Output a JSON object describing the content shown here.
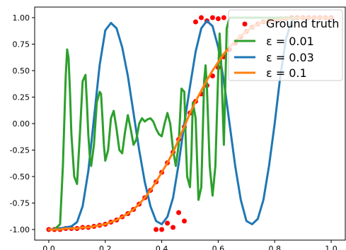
{
  "chart_data": {
    "type": "line",
    "xlim": [
      -0.05,
      1.05
    ],
    "ylim": [
      -1.1,
      1.1
    ],
    "xticks": [
      "0.0",
      "0.2",
      "0.4",
      "0.6",
      "0.8",
      "1.0"
    ],
    "xtick_values": [
      0.0,
      0.2,
      0.4,
      0.6,
      0.8,
      1.0
    ],
    "yticks": [
      "1.00",
      "0.75",
      "0.50",
      "0.25",
      "0.00",
      "-0.25",
      "-0.50",
      "-0.75",
      "-1.00"
    ],
    "ytick_values": [
      1.0,
      0.75,
      0.5,
      0.25,
      0.0,
      -0.25,
      -0.5,
      -0.75,
      -1.0
    ],
    "grid": false,
    "legend_position": "top-right",
    "legend": {
      "ground_truth": "Ground truth",
      "eps001": "ε = 0.01",
      "eps003": "ε = 0.03",
      "eps01": "ε = 0.1"
    },
    "series": [
      {
        "name": "Ground truth",
        "style": "points",
        "color": "#ff0000",
        "x": [
          0.0,
          0.02,
          0.04,
          0.06,
          0.08,
          0.1,
          0.12,
          0.14,
          0.16,
          0.18,
          0.2,
          0.22,
          0.24,
          0.26,
          0.28,
          0.3,
          0.32,
          0.34,
          0.36,
          0.38,
          0.4,
          0.42,
          0.44,
          0.46,
          0.48,
          0.5,
          0.52,
          0.54,
          0.56,
          0.58,
          0.6,
          0.62,
          0.64,
          0.66,
          0.68,
          0.7,
          0.72,
          0.74,
          0.76,
          0.78,
          0.8,
          0.82,
          0.84,
          0.86,
          0.88,
          0.9,
          0.92,
          0.94,
          0.96,
          0.98,
          1.0,
          0.38,
          0.4,
          0.42,
          0.44,
          0.46,
          0.48,
          0.52,
          0.54,
          0.56,
          0.58,
          0.6,
          0.62
        ],
        "y": [
          -1.0,
          -1.0,
          -1.0,
          -0.99,
          -0.99,
          -0.99,
          -0.98,
          -0.98,
          -0.97,
          -0.96,
          -0.95,
          -0.93,
          -0.91,
          -0.88,
          -0.85,
          -0.81,
          -0.76,
          -0.7,
          -0.63,
          -0.55,
          -0.46,
          -0.37,
          -0.27,
          -0.15,
          -0.03,
          0.1,
          0.21,
          0.28,
          0.36,
          0.45,
          0.53,
          0.63,
          0.7,
          0.76,
          0.82,
          0.87,
          0.91,
          0.94,
          0.96,
          0.97,
          0.98,
          0.99,
          0.99,
          1.0,
          1.0,
          1.0,
          1.0,
          1.0,
          1.0,
          1.0,
          1.0,
          -1.0,
          -1.0,
          -0.94,
          -0.98,
          -0.84,
          -0.92,
          0.96,
          1.0,
          0.97,
          1.0,
          0.99,
          1.0
        ]
      },
      {
        "name": "ε = 0.01",
        "style": "line",
        "color": "#2ca02c",
        "x": [
          0.0,
          0.02,
          0.04,
          0.05,
          0.06,
          0.065,
          0.07,
          0.075,
          0.08,
          0.09,
          0.1,
          0.11,
          0.12,
          0.13,
          0.135,
          0.14,
          0.145,
          0.15,
          0.16,
          0.17,
          0.18,
          0.185,
          0.19,
          0.195,
          0.2,
          0.21,
          0.22,
          0.23,
          0.24,
          0.25,
          0.26,
          0.27,
          0.28,
          0.29,
          0.3,
          0.31,
          0.32,
          0.33,
          0.34,
          0.35,
          0.36,
          0.37,
          0.38,
          0.39,
          0.4,
          0.41,
          0.42,
          0.43,
          0.44,
          0.45,
          0.46,
          0.47,
          0.48,
          0.485,
          0.49,
          0.5,
          0.505,
          0.51,
          0.52,
          0.53,
          0.54,
          0.55,
          0.555,
          0.56,
          0.57,
          0.58,
          0.59,
          0.6,
          0.605,
          0.61,
          0.62,
          0.63,
          0.64,
          0.66,
          0.7,
          0.8,
          0.9,
          1.0
        ],
        "y": [
          -1.0,
          -1.0,
          -0.95,
          -0.4,
          0.45,
          0.7,
          0.62,
          0.3,
          -0.1,
          -0.5,
          -0.57,
          -0.1,
          0.4,
          0.46,
          0.2,
          -0.1,
          -0.3,
          -0.4,
          -0.2,
          0.2,
          0.3,
          0.28,
          0.05,
          -0.2,
          -0.35,
          -0.25,
          0.05,
          0.12,
          -0.05,
          -0.25,
          -0.28,
          -0.08,
          0.08,
          -0.05,
          -0.2,
          -0.15,
          0.0,
          0.05,
          0.02,
          0.04,
          0.05,
          0.02,
          -0.05,
          -0.1,
          -0.12,
          0.0,
          0.1,
          0.0,
          -0.25,
          -0.4,
          -0.2,
          0.33,
          0.3,
          -0.15,
          -0.5,
          -0.6,
          -0.3,
          0.2,
          0.05,
          -0.72,
          -0.6,
          0.4,
          0.55,
          0.35,
          -0.4,
          -0.68,
          -0.4,
          0.48,
          0.85,
          0.6,
          -0.2,
          0.9,
          1.0,
          1.0,
          1.0,
          1.0,
          1.0,
          1.0
        ]
      },
      {
        "name": "ε = 0.03",
        "style": "line",
        "color": "#1f77b4",
        "x": [
          0.0,
          0.04,
          0.08,
          0.1,
          0.12,
          0.14,
          0.16,
          0.18,
          0.2,
          0.22,
          0.24,
          0.26,
          0.28,
          0.3,
          0.32,
          0.34,
          0.36,
          0.38,
          0.4,
          0.42,
          0.44,
          0.46,
          0.48,
          0.5,
          0.52,
          0.54,
          0.56,
          0.58,
          0.6,
          0.62,
          0.64,
          0.66,
          0.68,
          0.7,
          0.72,
          0.74,
          0.76,
          0.78,
          0.8,
          0.82,
          0.84,
          0.86,
          0.88,
          0.9,
          0.92,
          0.94,
          0.96,
          0.98,
          1.0
        ],
        "y": [
          -1.0,
          -0.99,
          -0.97,
          -0.93,
          -0.78,
          -0.45,
          0.05,
          0.55,
          0.88,
          0.95,
          0.9,
          0.72,
          0.45,
          0.1,
          -0.25,
          -0.55,
          -0.78,
          -0.92,
          -0.95,
          -0.88,
          -0.7,
          -0.38,
          0.0,
          0.35,
          0.68,
          0.9,
          0.97,
          0.92,
          0.72,
          0.4,
          0.0,
          -0.4,
          -0.72,
          -0.92,
          -0.95,
          -0.9,
          -0.72,
          -0.4,
          0.0,
          0.45,
          0.8,
          0.97,
          1.0,
          1.0,
          1.0,
          1.0,
          1.0,
          1.0,
          1.0
        ]
      },
      {
        "name": "ε = 0.1",
        "style": "line",
        "color": "#ff7f0e",
        "x": [
          0.0,
          0.02,
          0.04,
          0.06,
          0.08,
          0.1,
          0.12,
          0.14,
          0.16,
          0.18,
          0.2,
          0.22,
          0.24,
          0.26,
          0.28,
          0.3,
          0.32,
          0.34,
          0.36,
          0.38,
          0.4,
          0.42,
          0.44,
          0.46,
          0.48,
          0.5,
          0.52,
          0.54,
          0.56,
          0.58,
          0.6,
          0.62,
          0.64,
          0.66,
          0.68,
          0.7,
          0.72,
          0.74,
          0.76,
          0.78,
          0.8,
          0.85,
          0.9,
          0.95,
          1.0
        ],
        "y": [
          -1.0,
          -1.0,
          -1.0,
          -0.99,
          -0.99,
          -0.99,
          -0.98,
          -0.98,
          -0.97,
          -0.96,
          -0.95,
          -0.93,
          -0.91,
          -0.88,
          -0.85,
          -0.81,
          -0.76,
          -0.7,
          -0.63,
          -0.55,
          -0.46,
          -0.37,
          -0.27,
          -0.15,
          -0.03,
          0.1,
          0.21,
          0.31,
          0.41,
          0.5,
          0.58,
          0.66,
          0.72,
          0.78,
          0.83,
          0.87,
          0.91,
          0.94,
          0.96,
          0.97,
          0.98,
          0.99,
          1.0,
          1.0,
          1.0
        ]
      }
    ]
  }
}
